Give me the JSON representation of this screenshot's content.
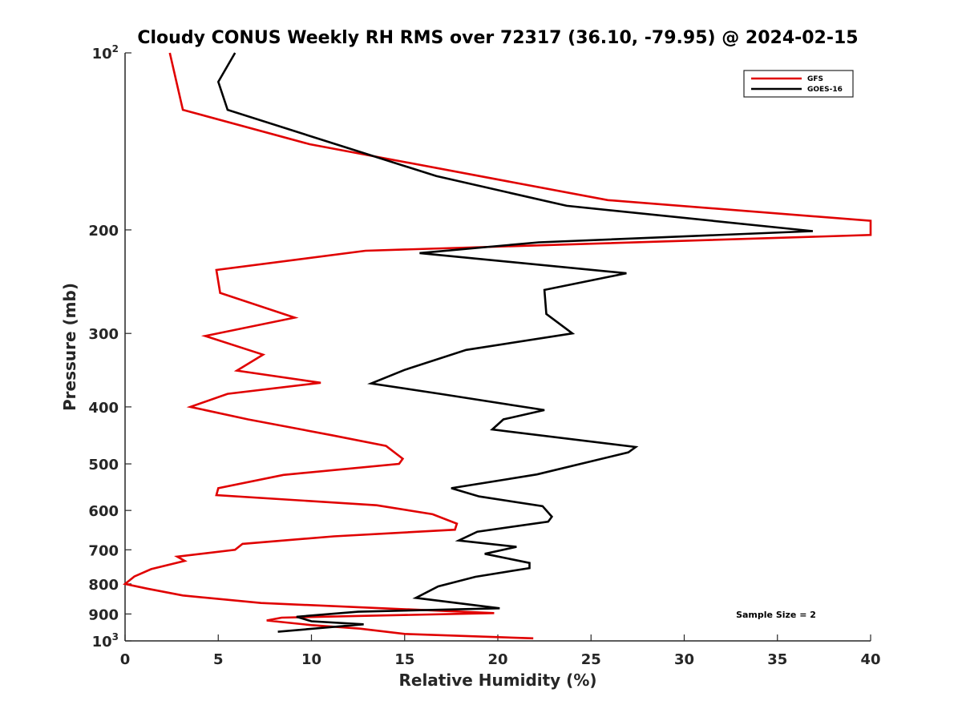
{
  "chart_data": {
    "type": "line",
    "title": "Cloudy CONUS Weekly RH RMS over 72317 (36.10, -79.95) @ 2024-02-15",
    "xlabel": "Relative Humidity (%)",
    "ylabel": "Pressure (mb)",
    "xlim": [
      0,
      40
    ],
    "ylim": [
      100,
      1000
    ],
    "yscale": "log",
    "yreversed": true,
    "grid": false,
    "x_ticks": [
      0,
      5,
      10,
      15,
      20,
      25,
      30,
      35,
      40
    ],
    "x_tick_labels": [
      "0",
      "5",
      "10",
      "15",
      "20",
      "25",
      "30",
      "35",
      "40"
    ],
    "y_ticks": [
      {
        "value": 100,
        "label": "10",
        "sup": "2"
      },
      {
        "value": 200,
        "label": "200"
      },
      {
        "value": 300,
        "label": "300"
      },
      {
        "value": 400,
        "label": "400"
      },
      {
        "value": 500,
        "label": "500"
      },
      {
        "value": 600,
        "label": "600"
      },
      {
        "value": 700,
        "label": "700"
      },
      {
        "value": 800,
        "label": "800"
      },
      {
        "value": 900,
        "label": "900"
      },
      {
        "value": 1000,
        "label": "10",
        "sup": "3"
      }
    ],
    "legend_position": "top-right",
    "annotation": "Sample Size = 2",
    "series": [
      {
        "name": "GFS",
        "color": "#e00000",
        "points": [
          [
            2.4,
            100
          ],
          [
            3.1,
            125
          ],
          [
            9.9,
            143
          ],
          [
            25.9,
            178
          ],
          [
            40,
            193
          ],
          [
            40,
            204
          ],
          [
            12.9,
            217
          ],
          [
            4.9,
            234
          ],
          [
            5.1,
            256
          ],
          [
            9.1,
            282
          ],
          [
            4.3,
            303
          ],
          [
            7.4,
            326
          ],
          [
            6.0,
            347
          ],
          [
            10.5,
            364
          ],
          [
            5.5,
            380
          ],
          [
            3.5,
            400
          ],
          [
            6.6,
            420
          ],
          [
            11.1,
            447
          ],
          [
            14.0,
            466
          ],
          [
            14.9,
            490
          ],
          [
            14.7,
            500
          ],
          [
            8.5,
            522
          ],
          [
            5.0,
            550
          ],
          [
            4.9,
            565
          ],
          [
            13.5,
            588
          ],
          [
            16.5,
            609
          ],
          [
            17.8,
            632
          ],
          [
            17.7,
            647
          ],
          [
            11.2,
            664
          ],
          [
            6.3,
            684
          ],
          [
            5.9,
            700
          ],
          [
            2.8,
            719
          ],
          [
            3.2,
            731
          ],
          [
            1.4,
            755
          ],
          [
            0.5,
            777
          ],
          [
            0,
            800
          ],
          [
            1.2,
            815
          ],
          [
            3.1,
            837
          ],
          [
            7.3,
            862
          ],
          [
            19.8,
            897
          ],
          [
            8.4,
            913
          ],
          [
            7.6,
            923
          ],
          [
            10.0,
            940
          ],
          [
            12.6,
            953
          ],
          [
            15.0,
            973
          ],
          [
            21.9,
            990
          ]
        ]
      },
      {
        "name": "GOES-16",
        "color": "#000000",
        "points": [
          [
            5.9,
            100
          ],
          [
            5.0,
            112
          ],
          [
            5.5,
            125
          ],
          [
            11.9,
            145
          ],
          [
            16.7,
            162
          ],
          [
            23.7,
            182
          ],
          [
            36.9,
            201
          ],
          [
            22.2,
            210
          ],
          [
            15.8,
            219
          ],
          [
            26.9,
            237
          ],
          [
            22.5,
            253
          ],
          [
            22.6,
            278
          ],
          [
            24.0,
            300
          ],
          [
            18.3,
            320
          ],
          [
            15.0,
            346
          ],
          [
            13.2,
            365
          ],
          [
            16.9,
            380
          ],
          [
            22.5,
            405
          ],
          [
            20.3,
            420
          ],
          [
            19.7,
            437
          ],
          [
            27.4,
            468
          ],
          [
            27.0,
            478
          ],
          [
            22.1,
            521
          ],
          [
            17.5,
            550
          ],
          [
            19.0,
            568
          ],
          [
            22.4,
            590
          ],
          [
            22.9,
            615
          ],
          [
            22.7,
            627
          ],
          [
            18.9,
            652
          ],
          [
            17.9,
            675
          ],
          [
            21.0,
            692
          ],
          [
            19.3,
            711
          ],
          [
            21.7,
            737
          ],
          [
            21.7,
            752
          ],
          [
            18.8,
            778
          ],
          [
            16.8,
            808
          ],
          [
            15.6,
            845
          ],
          [
            20.1,
            880
          ],
          [
            12.5,
            892
          ],
          [
            9.2,
            910
          ],
          [
            10.0,
            926
          ],
          [
            12.8,
            937
          ],
          [
            8.2,
            965
          ]
        ]
      }
    ]
  }
}
